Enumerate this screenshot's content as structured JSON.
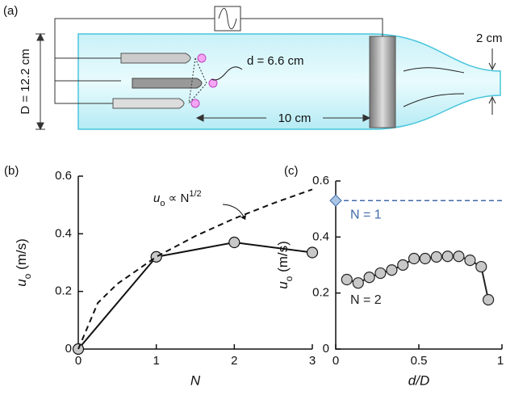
{
  "diagram": {
    "panel_label": "(a)",
    "D_label": "D = 12.2 cm",
    "d_label": "d = 6.6 cm",
    "length_label": "10 cm",
    "exit_label": "2 cm"
  },
  "chart_data": [
    {
      "type": "line",
      "panel_label": "(b)",
      "xlabel": "N",
      "ylabel": [
        "u",
        "o",
        " (m/s)"
      ],
      "annotation": [
        "u",
        "o",
        " ∝ N",
        "1/2"
      ],
      "xlim": [
        0,
        3
      ],
      "ylim": [
        0,
        0.6
      ],
      "xticks": [
        0,
        1,
        2,
        3
      ],
      "yticks": [
        0,
        0.2,
        0.4,
        0.6
      ],
      "series": [
        {
          "color": "#111111",
          "marker": true,
          "dashed": false,
          "x": [
            0,
            1,
            2,
            3
          ],
          "values": [
            0,
            0.32,
            0.37,
            0.335
          ]
        },
        {
          "color": "#111111",
          "marker": false,
          "dashed": true,
          "x": [
            0,
            0.25,
            0.5,
            1,
            1.5,
            2,
            2.5,
            3
          ],
          "values": [
            0,
            0.16,
            0.226,
            0.32,
            0.392,
            0.453,
            0.506,
            0.554
          ]
        }
      ]
    },
    {
      "type": "scatter",
      "panel_label": "(c)",
      "xlabel": "d/D",
      "ylabel": [
        "u",
        "o",
        " (m/s)"
      ],
      "xlim": [
        0,
        1
      ],
      "ylim": [
        0,
        0.6
      ],
      "xticks": [
        0,
        0.5,
        1
      ],
      "yticks": [
        0,
        0.2,
        0.4,
        0.6
      ],
      "series": [
        {
          "name": "N = 1",
          "color": "#3f6aa8",
          "fill": "#a9c4e4",
          "marker": "diamond",
          "reference_line": true,
          "x": [
            0
          ],
          "values": [
            0.53
          ]
        },
        {
          "name": "N = 2",
          "color": "#222222",
          "fill": "#c8c8c8",
          "marker": "circle",
          "line": true,
          "x": [
            0.067,
            0.135,
            0.202,
            0.269,
            0.337,
            0.404,
            0.471,
            0.538,
            0.606,
            0.673,
            0.74,
            0.808,
            0.875,
            0.918
          ],
          "values": [
            0.248,
            0.236,
            0.256,
            0.271,
            0.282,
            0.3,
            0.323,
            0.323,
            0.329,
            0.331,
            0.331,
            0.317,
            0.294,
            0.176
          ]
        }
      ]
    }
  ]
}
